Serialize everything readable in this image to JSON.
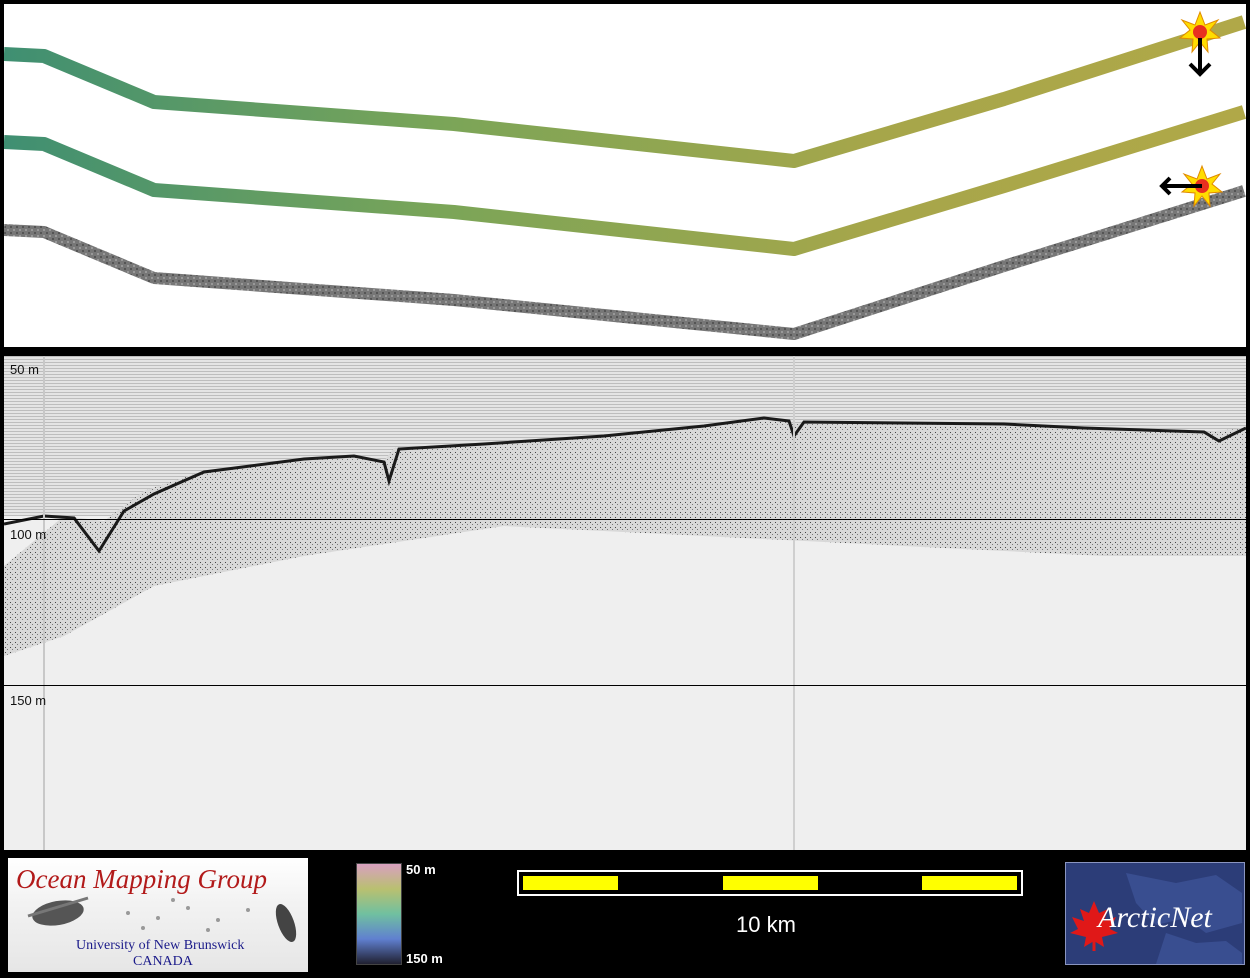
{
  "profile": {
    "depth_labels": [
      "50 m",
      "100 m",
      "150 m"
    ]
  },
  "legend": {
    "logo_left": {
      "title": "Ocean Mapping Group",
      "subtitle_line1": "University of New Brunswick",
      "subtitle_line2": "CANADA"
    },
    "colorbar": {
      "top_label": "50 m",
      "bottom_label": "150 m"
    },
    "scalebar": {
      "label": "10 km"
    },
    "logo_right": {
      "text": "ArcticNet"
    }
  },
  "colors": {
    "track_green": "#4c9a6a",
    "track_olive": "#a8a848",
    "track_gray": "#707070",
    "marker_yellow": "#ffdd00",
    "marker_red": "#e83020",
    "scalebar_yellow": "#ffff00"
  },
  "icons": [
    "sun-marker-icon",
    "arrow-down-icon",
    "arrow-left-icon",
    "maple-leaf-icon"
  ]
}
